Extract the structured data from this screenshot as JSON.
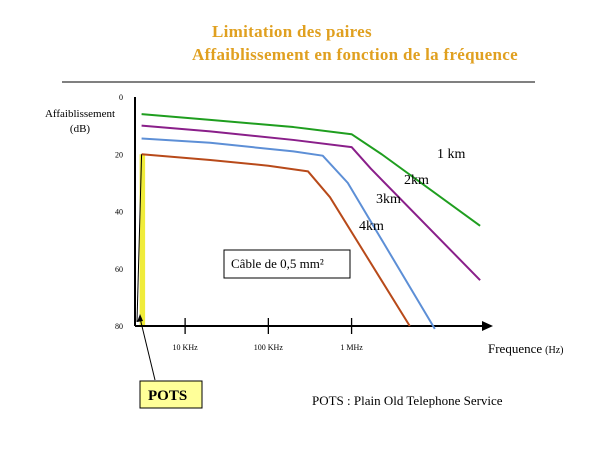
{
  "title_line1": "Limitation des paires",
  "title_line2": "Affaiblissement en fonction de la fréquence",
  "colors": {
    "title": "#e0a020",
    "pots_fill": "#f0ec3a",
    "pots_box": "#ffff99"
  },
  "chart_data": {
    "type": "line",
    "xlabel": "Frequence",
    "xlabel_unit": "(Hz)",
    "ylabel_line1": "Affaiblissement",
    "ylabel_line2": "(dB)",
    "x_scale": "log",
    "xlim": [
      2500,
      50000000
    ],
    "ylim": [
      0,
      80
    ],
    "y_inverted": true,
    "y_ticks": [
      {
        "value": 0,
        "label": "0"
      },
      {
        "value": 20,
        "label": "20"
      },
      {
        "value": 40,
        "label": "40"
      },
      {
        "value": 60,
        "label": "60"
      },
      {
        "value": 80,
        "label": "80"
      }
    ],
    "x_ticks": [
      {
        "value": 10000,
        "label": "10 KHz"
      },
      {
        "value": 100000,
        "label": "100 KHz"
      },
      {
        "value": 1000000,
        "label": "1 MHz"
      }
    ],
    "series": [
      {
        "name": "1 km",
        "color": "#1f9e1f",
        "points": [
          [
            3000,
            6
          ],
          [
            20000,
            8
          ],
          [
            200000,
            10.5
          ],
          [
            1000000,
            13
          ],
          [
            2300000,
            20
          ],
          [
            35000000,
            45
          ]
        ]
      },
      {
        "name": "2km",
        "color": "#8a1f8a",
        "points": [
          [
            3000,
            10
          ],
          [
            20000,
            12
          ],
          [
            200000,
            15
          ],
          [
            1000000,
            17.5
          ],
          [
            1700000,
            25
          ],
          [
            35000000,
            64
          ]
        ]
      },
      {
        "name": "3km",
        "color": "#5d8fd6",
        "points": [
          [
            3000,
            14.5
          ],
          [
            20000,
            16
          ],
          [
            200000,
            19
          ],
          [
            450000,
            20.5
          ],
          [
            900000,
            30
          ],
          [
            10000000,
            81
          ]
        ]
      },
      {
        "name": "4km",
        "color": "#b84a1a",
        "points": [
          [
            3000,
            20
          ],
          [
            20000,
            22
          ],
          [
            100000,
            24
          ],
          [
            300000,
            26
          ],
          [
            550000,
            35
          ],
          [
            5000000,
            80
          ]
        ]
      }
    ],
    "pots_region": {
      "x_from": 3000,
      "x_to": 3400,
      "y_top": 20,
      "label": "POTS"
    },
    "annotation": "Câble de 0,5 mm²",
    "footnote": "POTS : Plain Old Telephone Service"
  }
}
